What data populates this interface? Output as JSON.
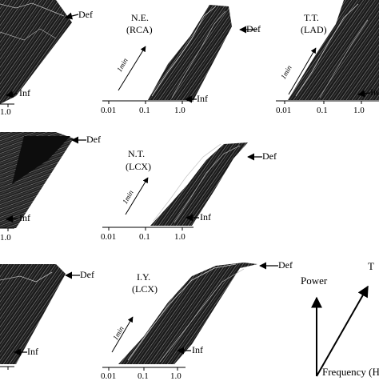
{
  "panels": [
    {
      "id": "r1c1",
      "patient": "",
      "artery": "",
      "def": "Def",
      "inf": "Inf",
      "ticks": [
        "1.0"
      ],
      "time_label": ""
    },
    {
      "id": "r1c2",
      "patient": "N.E.",
      "artery": "(RCA)",
      "def": "Def",
      "inf": "Inf",
      "ticks": [
        "0.01",
        "0.1",
        "1.0"
      ],
      "time_label": "1min"
    },
    {
      "id": "r1c3",
      "patient": "T.T.",
      "artery": "(LAD)",
      "def": "",
      "inf": "Inf",
      "ticks": [
        "0.01",
        "0.1",
        "1.0"
      ],
      "time_label": "1min"
    },
    {
      "id": "r2c1",
      "patient": "",
      "artery": "",
      "def": "Def",
      "inf": "Inf",
      "ticks": [
        "1.0"
      ],
      "time_label": ""
    },
    {
      "id": "r2c2",
      "patient": "N.T.",
      "artery": "(LCX)",
      "def": "Def",
      "inf": "Inf",
      "ticks": [
        "0.01",
        "0.1",
        "1.0"
      ],
      "time_label": "1min"
    },
    {
      "id": "r3c1",
      "patient": "",
      "artery": "",
      "def": "Def",
      "inf": "Inf",
      "ticks": [
        "1.0"
      ],
      "time_label": ""
    },
    {
      "id": "r3c2",
      "patient": "I.Y.",
      "artery": "(LCX)",
      "def": "Def",
      "inf": "Inf",
      "ticks": [
        "0.01",
        "0.1",
        "1.0"
      ],
      "time_label": "1min"
    }
  ],
  "legend": {
    "power": "Power",
    "time": "T",
    "frequency": "Frequency (H"
  },
  "colors": {
    "ink": "#000000",
    "surface_dark": "#1a1a1a",
    "surface_mid": "#555555",
    "background": "#ffffff"
  }
}
